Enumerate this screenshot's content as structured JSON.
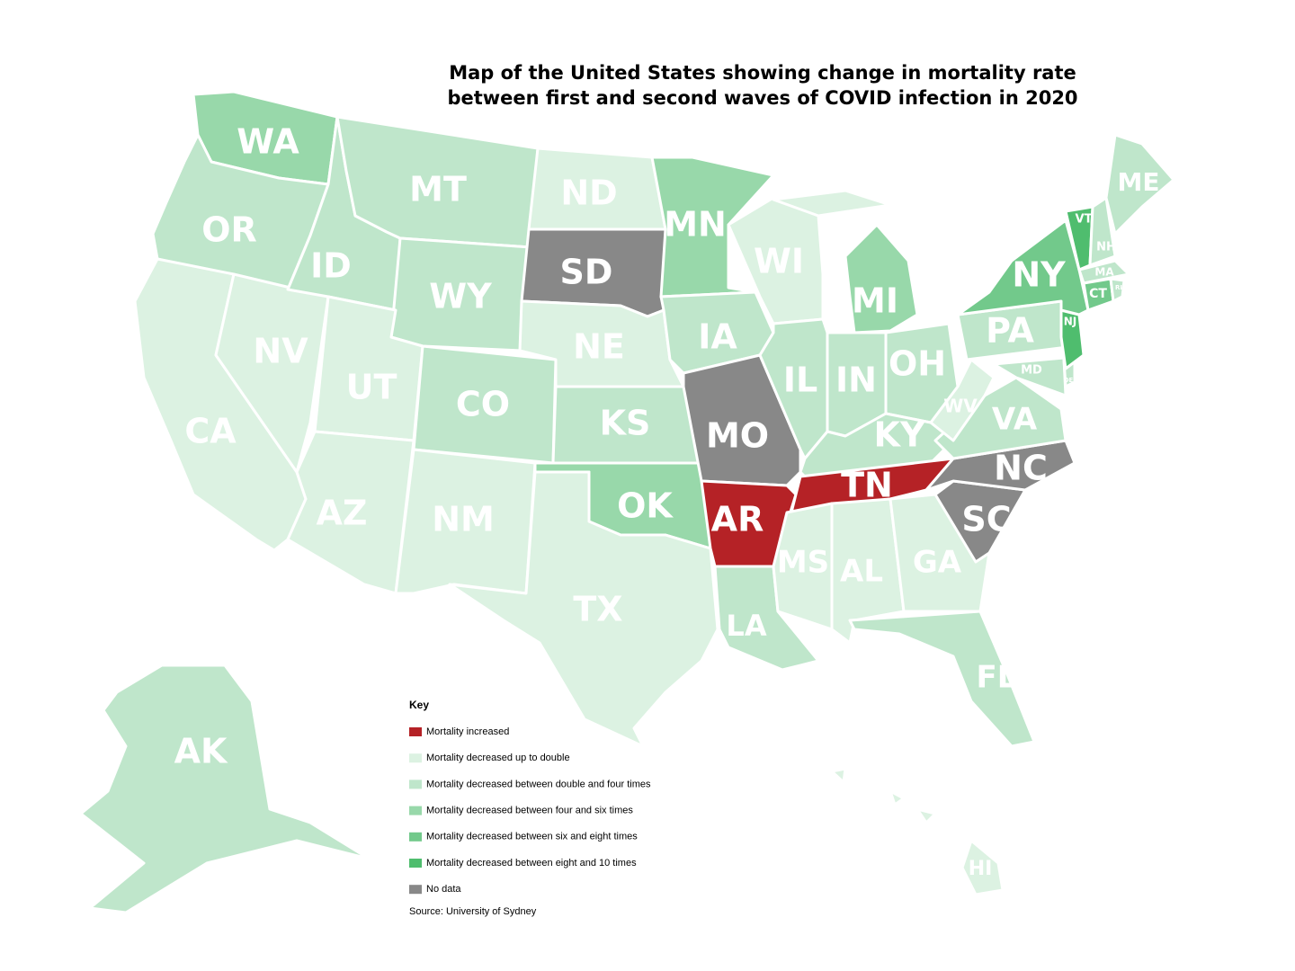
{
  "title": [
    "Map of the United States showing change in mortality rate",
    "between first and second waves of COVID infection in 2020"
  ],
  "legend": {
    "title": "Key",
    "items": [
      {
        "label": "Mortality increased",
        "color": "#b52226"
      },
      {
        "label": "Mortality decreased up to double",
        "color": "#dcf2e2"
      },
      {
        "label": "Mortality decreased between double and four times",
        "color": "#bfe6cb"
      },
      {
        "label": "Mortality decreased between four and six times",
        "color": "#98d8aa"
      },
      {
        "label": "Mortality decreased between six and eight times",
        "color": "#72c98b"
      },
      {
        "label": "Mortality decreased between eight and 10 times",
        "color": "#4fbd6e"
      },
      {
        "label": "No data",
        "color": "#888888"
      }
    ]
  },
  "source": "Source: University of Sydney",
  "states": [
    {
      "label": "WA",
      "color": "#98d8aa"
    },
    {
      "label": "OR",
      "color": "#bfe6cb"
    },
    {
      "label": "CA",
      "color": "#dcf2e2"
    },
    {
      "label": "NV",
      "color": "#dcf2e2"
    },
    {
      "label": "ID",
      "color": "#bfe6cb"
    },
    {
      "label": "MT",
      "color": "#bfe6cb"
    },
    {
      "label": "WY",
      "color": "#bfe6cb"
    },
    {
      "label": "UT",
      "color": "#dcf2e2"
    },
    {
      "label": "CO",
      "color": "#bfe6cb"
    },
    {
      "label": "AZ",
      "color": "#dcf2e2"
    },
    {
      "label": "NM",
      "color": "#dcf2e2"
    },
    {
      "label": "ND",
      "color": "#dcf2e2"
    },
    {
      "label": "SD",
      "color": "#888888"
    },
    {
      "label": "NE",
      "color": "#dcf2e2"
    },
    {
      "label": "KS",
      "color": "#bfe6cb"
    },
    {
      "label": "OK",
      "color": "#98d8aa"
    },
    {
      "label": "TX",
      "color": "#dcf2e2"
    },
    {
      "label": "MN",
      "color": "#98d8aa"
    },
    {
      "label": "IA",
      "color": "#bfe6cb"
    },
    {
      "label": "MO",
      "color": "#888888"
    },
    {
      "label": "AR",
      "color": "#b52226"
    },
    {
      "label": "LA",
      "color": "#bfe6cb"
    },
    {
      "label": "WI",
      "color": "#dcf2e2"
    },
    {
      "label": "IL",
      "color": "#bfe6cb"
    },
    {
      "label": "MI",
      "color": "#98d8aa"
    },
    {
      "label": "IN",
      "color": "#bfe6cb"
    },
    {
      "label": "OH",
      "color": "#bfe6cb"
    },
    {
      "label": "KY",
      "color": "#bfe6cb"
    },
    {
      "label": "TN",
      "color": "#b52226"
    },
    {
      "label": "MS",
      "color": "#dcf2e2"
    },
    {
      "label": "AL",
      "color": "#dcf2e2"
    },
    {
      "label": "GA",
      "color": "#dcf2e2"
    },
    {
      "label": "FL",
      "color": "#bfe6cb"
    },
    {
      "label": "SC",
      "color": "#888888"
    },
    {
      "label": "NC",
      "color": "#888888"
    },
    {
      "label": "VA",
      "color": "#bfe6cb"
    },
    {
      "label": "WV",
      "color": "#dcf2e2"
    },
    {
      "label": "PA",
      "color": "#bfe6cb"
    },
    {
      "label": "MD",
      "color": "#bfe6cb"
    },
    {
      "label": "DE",
      "color": "#bfe6cb"
    },
    {
      "label": "NJ",
      "color": "#4fbd6e"
    },
    {
      "label": "NY",
      "color": "#72c98b"
    },
    {
      "label": "VT",
      "color": "#4fbd6e"
    },
    {
      "label": "NH",
      "color": "#bfe6cb"
    },
    {
      "label": "ME",
      "color": "#bfe6cb"
    },
    {
      "label": "MA",
      "color": "#bfe6cb"
    },
    {
      "label": "CT",
      "color": "#72c98b"
    },
    {
      "label": "RI",
      "color": "#bfe6cb"
    },
    {
      "label": "AK",
      "color": "#bfe6cb"
    },
    {
      "label": "HI",
      "color": "#dcf2e2"
    }
  ]
}
